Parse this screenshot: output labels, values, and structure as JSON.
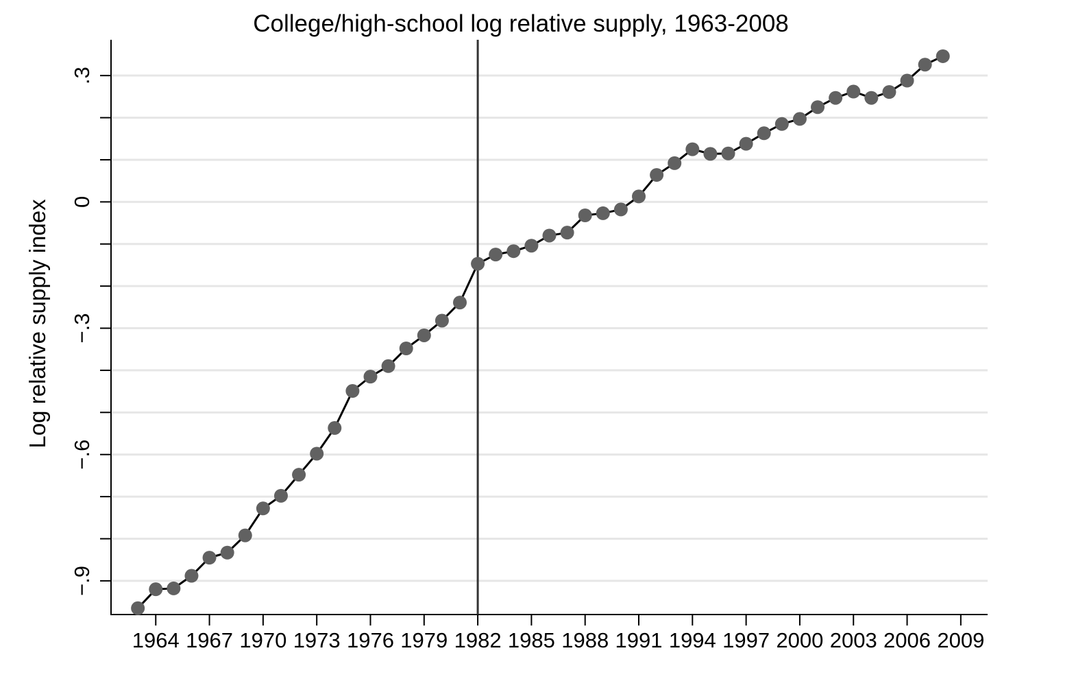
{
  "chart_data": {
    "type": "line",
    "title": "College/high-school log relative supply, 1963-2008",
    "xlabel": "",
    "ylabel": "Log relative supply index",
    "xlim": [
      1961.5,
      2010.5
    ],
    "ylim": [
      -0.98,
      0.385
    ],
    "xticks": [
      1964,
      1967,
      1970,
      1973,
      1976,
      1979,
      1982,
      1985,
      1988,
      1991,
      1994,
      1997,
      2000,
      2003,
      2006,
      2009
    ],
    "xtick_labels": [
      "1964",
      "1967",
      "1970",
      "1973",
      "1976",
      "1979",
      "1982",
      "1985",
      "1988",
      "1991",
      "1994",
      "1997",
      "2000",
      "2003",
      "2006",
      "2009"
    ],
    "yticks": [
      -0.9,
      -0.8,
      -0.7,
      -0.6,
      -0.5,
      -0.4,
      -0.3,
      -0.2,
      -0.1,
      0,
      0.1,
      0.2,
      0.3
    ],
    "ytick_labels": [
      {
        "value": -0.9,
        "label": "−.9"
      },
      {
        "value": -0.6,
        "label": "−.6"
      },
      {
        "value": -0.3,
        "label": "−.3"
      },
      {
        "value": 0,
        "label": "0"
      },
      {
        "value": 0.3,
        "label": ".3"
      }
    ],
    "grid": true,
    "vline": 1982,
    "series": [
      {
        "color": "#616161",
        "line_color": "#000000",
        "x": [
          1963,
          1964,
          1965,
          1966,
          1967,
          1968,
          1969,
          1970,
          1971,
          1972,
          1973,
          1974,
          1975,
          1976,
          1977,
          1978,
          1979,
          1980,
          1981,
          1982,
          1983,
          1984,
          1985,
          1986,
          1987,
          1988,
          1989,
          1990,
          1991,
          1992,
          1993,
          1994,
          1995,
          1996,
          1997,
          1998,
          1999,
          2000,
          2001,
          2002,
          2003,
          2004,
          2005,
          2006,
          2007,
          2008
        ],
        "y": [
          -0.965,
          -0.92,
          -0.918,
          -0.888,
          -0.845,
          -0.833,
          -0.792,
          -0.728,
          -0.698,
          -0.648,
          -0.598,
          -0.537,
          -0.449,
          -0.415,
          -0.39,
          -0.348,
          -0.317,
          -0.282,
          -0.239,
          -0.147,
          -0.125,
          -0.117,
          -0.104,
          -0.08,
          -0.073,
          -0.032,
          -0.027,
          -0.018,
          0.013,
          0.064,
          0.092,
          0.125,
          0.114,
          0.115,
          0.138,
          0.163,
          0.185,
          0.197,
          0.225,
          0.247,
          0.262,
          0.247,
          0.261,
          0.288,
          0.326,
          0.346
        ]
      }
    ]
  }
}
